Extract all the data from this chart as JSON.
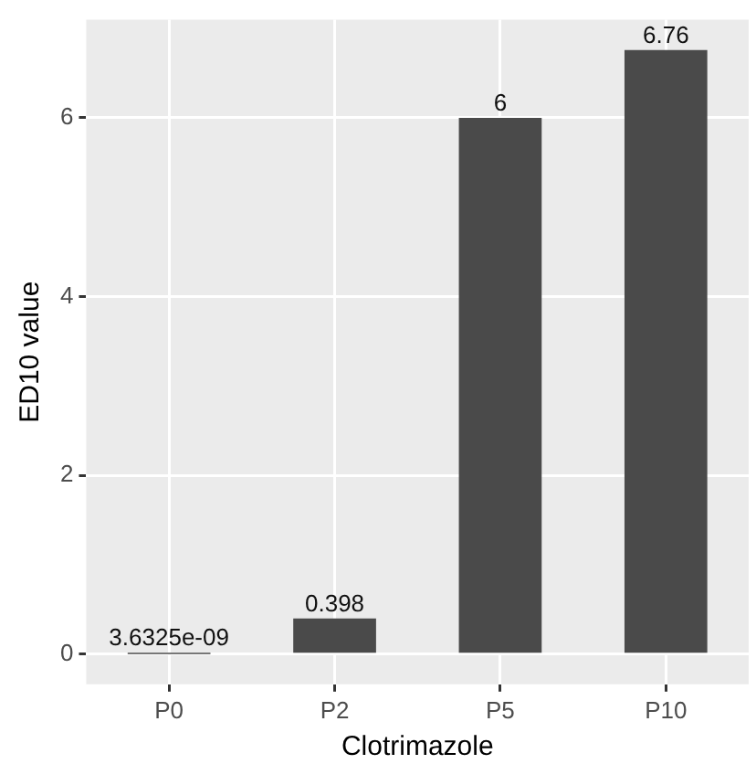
{
  "chart_data": {
    "type": "bar",
    "xlabel": "Clotrimazole",
    "ylabel": "ED10 value",
    "categories": [
      "P0",
      "P2",
      "P5",
      "P10"
    ],
    "values": [
      3.6325e-09,
      0.398,
      6,
      6.76
    ],
    "value_labels": [
      "3.6325e-09",
      "0.398",
      "6",
      "6.76"
    ],
    "color": "#4a4a4a",
    "ylim": [
      -0.338,
      7.098
    ],
    "yticks": [
      0,
      2,
      4,
      6
    ],
    "grid": true
  }
}
